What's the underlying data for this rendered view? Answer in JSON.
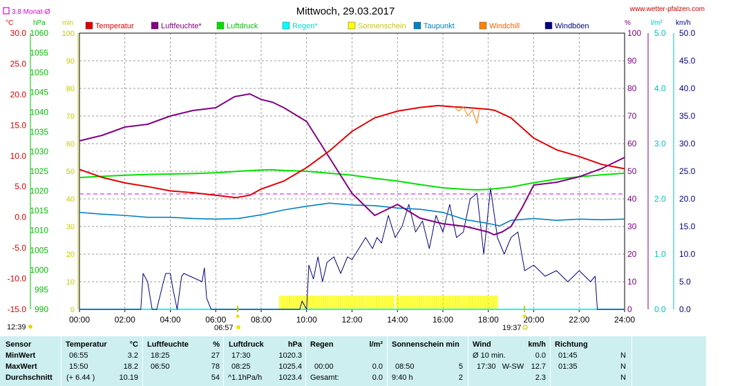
{
  "title": "Mittwoch, 29.03.2017",
  "site": "www.wetter-pfalzen.com",
  "month_avg_label": "3.8 Monat-Ø",
  "axis_units": {
    "temp": "°C",
    "pressure": "hPa",
    "sunshine": "min",
    "humidity": "%",
    "rain": "l/m²",
    "wind": "km/h"
  },
  "sunrise": "06:57",
  "sunset": "19:37",
  "moonrise": "12:39",
  "colors": {
    "temp": "#e00000",
    "humidity": "#800080",
    "pressure": "#00e000",
    "rain": "#00ffff",
    "sun": "#ffff00",
    "dew": "#0080c0",
    "windchill": "#ff8000",
    "gust": "#000080",
    "month_avg": "#e000e0"
  },
  "chart_data": {
    "type": "line",
    "x_ticks": [
      "00:00",
      "02:00",
      "04:00",
      "06:00",
      "08:00",
      "10:00",
      "12:00",
      "14:00",
      "16:00",
      "18:00",
      "20:00",
      "22:00",
      "24:00"
    ],
    "x_range_hours": [
      0,
      24
    ],
    "axes": {
      "temp": {
        "range": [
          -15,
          30
        ],
        "ticks": [
          "30.0",
          "25.0",
          "20.0",
          "15.0",
          "10.0",
          "5.0",
          "0.0",
          "-5.0",
          "-10.0",
          "-15.0"
        ]
      },
      "pressure": {
        "range": [
          990,
          1060
        ],
        "ticks": [
          "1060",
          "1055",
          "1050",
          "1045",
          "1040",
          "1035",
          "1030",
          "1025",
          "1020",
          "1015",
          "1010",
          "1005",
          "1000",
          "995",
          "990"
        ]
      },
      "sunshine": {
        "range": [
          0,
          100
        ],
        "ticks": [
          "100",
          "90",
          "80",
          "70",
          "60",
          "50",
          "40",
          "30",
          "20",
          "10",
          "0"
        ]
      },
      "humidity": {
        "range": [
          0,
          100
        ],
        "ticks": [
          "100",
          "90",
          "80",
          "70",
          "60",
          "50",
          "40",
          "30",
          "20",
          "10",
          "0"
        ]
      },
      "rain": {
        "range": [
          0,
          5
        ],
        "ticks": [
          "5.0",
          "4.0",
          "3.0",
          "2.0",
          "1.0",
          "0.0"
        ]
      },
      "wind": {
        "range": [
          0,
          50
        ],
        "ticks": [
          "50.0",
          "45.0",
          "40.0",
          "35.0",
          "30.0",
          "25.0",
          "20.0",
          "15.0",
          "10.0",
          "5.0",
          "0.0"
        ]
      }
    },
    "legend": [
      "Temperatur",
      "Luftfeuchte*",
      "Luftdruck",
      "Regen*",
      "Sonnenschein",
      "Taupunkt",
      "Windchill",
      "Windböen"
    ],
    "series": [
      {
        "name": "Temperatur",
        "axis": "temp",
        "x": [
          0,
          1,
          2,
          3,
          4,
          5,
          6,
          6.9,
          7.5,
          8,
          9,
          10,
          11,
          12,
          13,
          14,
          15,
          15.8,
          16.5,
          17,
          18,
          18.3,
          19,
          20,
          21,
          22,
          23,
          24
        ],
        "values": [
          7.8,
          6.5,
          5.6,
          5.0,
          4.3,
          4.0,
          3.6,
          3.2,
          3.6,
          4.6,
          5.9,
          8.1,
          10.8,
          14.0,
          16.2,
          17.3,
          17.9,
          18.2,
          18.0,
          17.9,
          17.6,
          17.4,
          16.2,
          12.9,
          11.0,
          9.9,
          8.6,
          7.9
        ]
      },
      {
        "name": "Luftfeuchte*",
        "axis": "humidity",
        "x": [
          0,
          1,
          2,
          3,
          4,
          5,
          6,
          6.83,
          7.5,
          8,
          8.5,
          9,
          10,
          11,
          12,
          13,
          14,
          15,
          16,
          17,
          18,
          18.25,
          18.6,
          19,
          19.5,
          20,
          21,
          22,
          23,
          24
        ],
        "values": [
          61,
          63,
          66,
          67,
          70,
          72,
          73,
          77,
          78,
          76,
          75,
          73,
          68,
          55,
          42,
          34,
          38,
          33,
          31,
          30,
          28,
          27,
          28,
          30,
          37,
          45,
          46,
          48,
          51,
          55
        ]
      },
      {
        "name": "Luftdruck",
        "axis": "pressure",
        "x": [
          0,
          1,
          2,
          3,
          4,
          5,
          6,
          7,
          8,
          8.42,
          9,
          10,
          11,
          12,
          13,
          14,
          15,
          16,
          17,
          17.5,
          18,
          19,
          20,
          21,
          22,
          23,
          24
        ],
        "values": [
          1023.4,
          1023.7,
          1024.0,
          1024.2,
          1024.3,
          1024.4,
          1024.6,
          1025.0,
          1025.3,
          1025.4,
          1025.2,
          1025.0,
          1024.5,
          1024.0,
          1023.2,
          1022.5,
          1021.6,
          1020.8,
          1020.4,
          1020.3,
          1020.4,
          1021.0,
          1022.1,
          1023.0,
          1023.6,
          1024.1,
          1024.5
        ]
      },
      {
        "name": "Taupunkt",
        "axis": "temp",
        "x": [
          0,
          1,
          2,
          3,
          4,
          5,
          6,
          7,
          8,
          9,
          10,
          11,
          12,
          13,
          14,
          15,
          16,
          17,
          18,
          18.5,
          19,
          20,
          21,
          22,
          23,
          24
        ],
        "values": [
          0.8,
          0.5,
          0.3,
          0.0,
          0.0,
          -0.2,
          -0.3,
          -0.2,
          0.4,
          1.2,
          1.8,
          2.3,
          2.0,
          1.9,
          1.5,
          1.3,
          0.8,
          -0.4,
          -1.0,
          -1.4,
          -0.5,
          -0.2,
          -0.5,
          -0.3,
          -0.4,
          -0.3
        ]
      },
      {
        "name": "Windböen",
        "axis": "wind",
        "x": [
          0,
          2.7,
          2.8,
          3.0,
          3.2,
          3.4,
          3.7,
          3.8,
          4.0,
          4.1,
          4.3,
          4.5,
          4.6,
          5.4,
          5.5,
          5.6,
          5.8,
          6.0,
          6.1,
          9.7,
          9.8,
          10.0,
          10.1,
          10.3,
          10.5,
          10.7,
          10.9,
          11.2,
          11.5,
          11.8,
          12.0,
          12.3,
          12.6,
          12.9,
          13.1,
          13.3,
          13.6,
          13.9,
          14.2,
          14.5,
          14.8,
          15.1,
          15.4,
          15.7,
          16.0,
          16.3,
          16.6,
          16.9,
          17.2,
          17.5,
          17.8,
          18.1,
          18.4,
          18.7,
          19.0,
          19.3,
          19.6,
          20.0,
          20.5,
          21.0,
          21.5,
          22.0,
          22.5,
          22.7,
          22.8,
          24
        ],
        "values": [
          0,
          0,
          6.5,
          5,
          0,
          0,
          5,
          6.5,
          6.5,
          4,
          0,
          6,
          6.5,
          5,
          7.5,
          2,
          0,
          0,
          0,
          0,
          1.5,
          0,
          8,
          5.5,
          9.5,
          5,
          8.5,
          9.5,
          6.5,
          9.5,
          9,
          11,
          13,
          11,
          13,
          12,
          17,
          13,
          15,
          19,
          14,
          16,
          11,
          17,
          14,
          19,
          13,
          14,
          20,
          21,
          10,
          22,
          13,
          10,
          13,
          14,
          7,
          8,
          6,
          7,
          5,
          7,
          5,
          6,
          0,
          0
        ]
      },
      {
        "name": "Windchill",
        "axis": "temp",
        "x": [
          16.5,
          16.7,
          16.9,
          17.1,
          17.3,
          17.5,
          17.6
        ],
        "values": [
          18.0,
          17.3,
          18.0,
          16.5,
          17.5,
          15.3,
          17.5
        ]
      }
    ],
    "sunshine_bars": {
      "axis": "sunshine",
      "value": 5,
      "intervals": [
        [
          8.83,
          13.83
        ],
        [
          13.97,
          18.45
        ]
      ]
    },
    "month_avg_temp": 3.8,
    "rain": {
      "axis": "rain",
      "total": 0.0
    }
  },
  "table": {
    "headers": {
      "sensor": "Sensor",
      "temp": "Temperatur",
      "temp_unit": "°C",
      "hum": "Luftfeuchte",
      "hum_unit": "%",
      "press": "Luftdruck",
      "press_unit": "hPa",
      "rain": "Regen",
      "rain_unit": "l/m²",
      "sun": "Sonnenschein min",
      "wind": "Wind",
      "wind_unit": "km/h",
      "dir": "Richtung"
    },
    "rows": [
      {
        "label": "MinWert",
        "temp_t": "06:55",
        "temp_v": "3.2",
        "hum_t": "18:25",
        "hum_v": "27",
        "press_t": "17:30",
        "press_v": "1020.3",
        "rain_t": "",
        "rain_v": "",
        "sun_t": "",
        "sun_v": "",
        "wind_t": "Ø 10 min.",
        "wind_v": "0.0",
        "dir_t": "01:45",
        "dir_v": "N"
      },
      {
        "label": "MaxWert",
        "temp_t": "15:50",
        "temp_v": "18.2",
        "hum_t": "06:50",
        "hum_v": "78",
        "press_t": "08:25",
        "press_v": "1025.4",
        "rain_t": "00:00",
        "rain_v": "0.0",
        "sun_t": "08:50",
        "sun_v": "5",
        "wind_t": "17:30   W-SW",
        "wind_v": "12.7",
        "dir_t": "01:35",
        "dir_v": "N"
      },
      {
        "label": "Durchschnitt",
        "temp_t": "(+ 6.44 )",
        "temp_v": "10.19",
        "hum_t": "",
        "hum_v": "54",
        "press_t": "^1.1hPa/h",
        "press_v": "1023.4",
        "rain_t": "Gesamt:",
        "rain_v": "0.0",
        "sun_t": "9:40 h",
        "sun_v": "2",
        "wind_t": "",
        "wind_v": "2.3",
        "dir_t": "",
        "dir_v": "N"
      }
    ]
  }
}
